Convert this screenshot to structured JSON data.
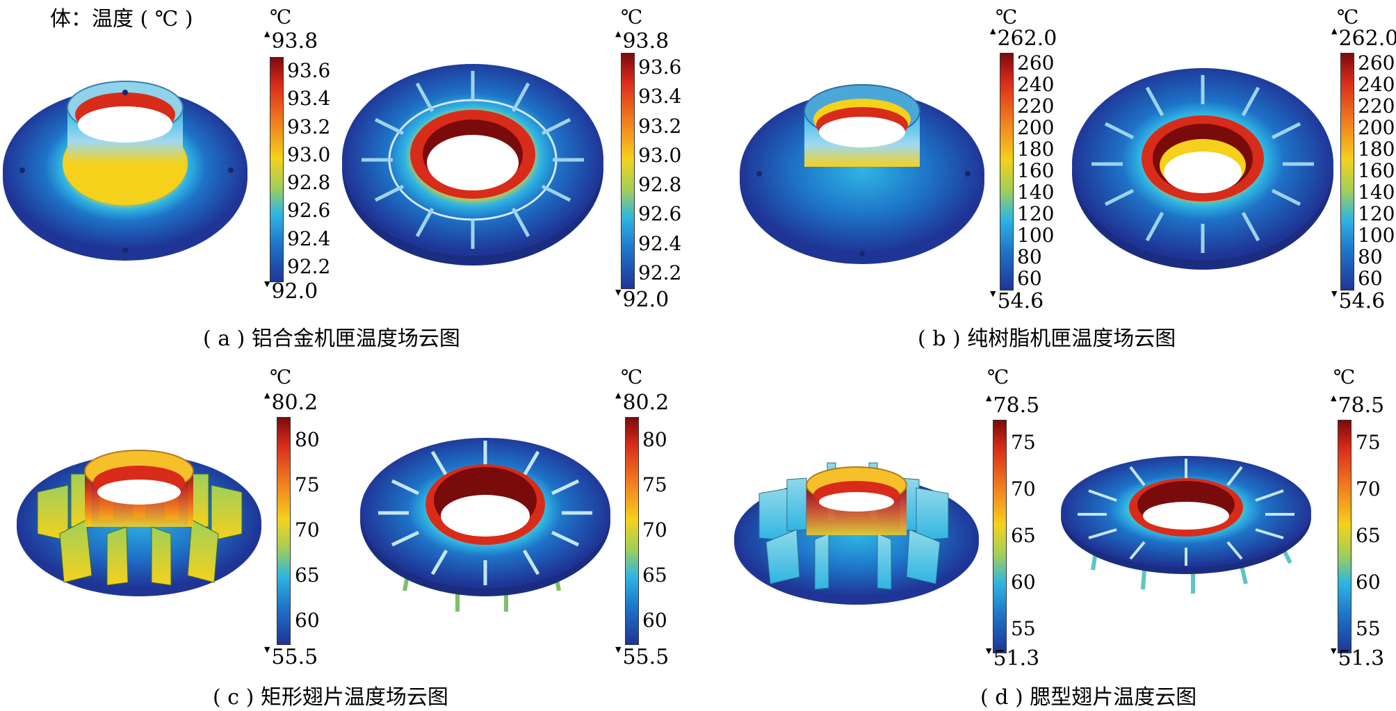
{
  "header": {
    "title": "体：温度 ( ℃ )"
  },
  "panels": [
    {
      "id": "a",
      "caption": "( a ) 铝合金机匣温度场云图",
      "colorbars": [
        {
          "unit": "℃",
          "max": "93.8",
          "min": "92.0",
          "ticks": [
            "93.6",
            "93.4",
            "93.2",
            "93.0",
            "92.8",
            "92.6",
            "92.4",
            "92.2"
          ]
        },
        {
          "unit": "℃",
          "max": "93.8",
          "min": "92.0",
          "ticks": [
            "93.6",
            "93.4",
            "93.2",
            "93.0",
            "92.8",
            "92.6",
            "92.4",
            "92.2"
          ]
        }
      ]
    },
    {
      "id": "b",
      "caption": "( b ) 纯树脂机匣温度场云图",
      "colorbars": [
        {
          "unit": "℃",
          "max": "262.0",
          "min": "54.6",
          "ticks": [
            "260",
            "240",
            "220",
            "200",
            "180",
            "160",
            "140",
            "120",
            "100",
            "80",
            "60"
          ]
        },
        {
          "unit": "℃",
          "max": "262.0",
          "min": "54.6",
          "ticks": [
            "260",
            "240",
            "220",
            "200",
            "180",
            "160",
            "140",
            "120",
            "100",
            "80",
            "60"
          ]
        }
      ]
    },
    {
      "id": "c",
      "caption": "( c ) 矩形翅片温度场云图",
      "colorbars": [
        {
          "unit": "℃",
          "max": "80.2",
          "min": "55.5",
          "ticks": [
            "80",
            "75",
            "70",
            "65",
            "60"
          ]
        },
        {
          "unit": "℃",
          "max": "80.2",
          "min": "55.5",
          "ticks": [
            "80",
            "75",
            "70",
            "65",
            "60"
          ]
        }
      ]
    },
    {
      "id": "d",
      "caption": "( d ) 腮型翅片温度云图",
      "colorbars": [
        {
          "unit": "℃",
          "max": "78.5",
          "min": "51.3",
          "ticks": [
            "75",
            "70",
            "65",
            "60",
            "55"
          ]
        },
        {
          "unit": "℃",
          "max": "78.5",
          "min": "51.3",
          "ticks": [
            "75",
            "70",
            "65",
            "60",
            "55"
          ]
        }
      ]
    }
  ],
  "colors": {
    "cold": "#1f3596",
    "mid_cool": "#2fb5e3",
    "mid": "#f5d11c",
    "warm": "#f07a1f",
    "hot": "#d92b1a",
    "max": "#7a0b0b"
  }
}
